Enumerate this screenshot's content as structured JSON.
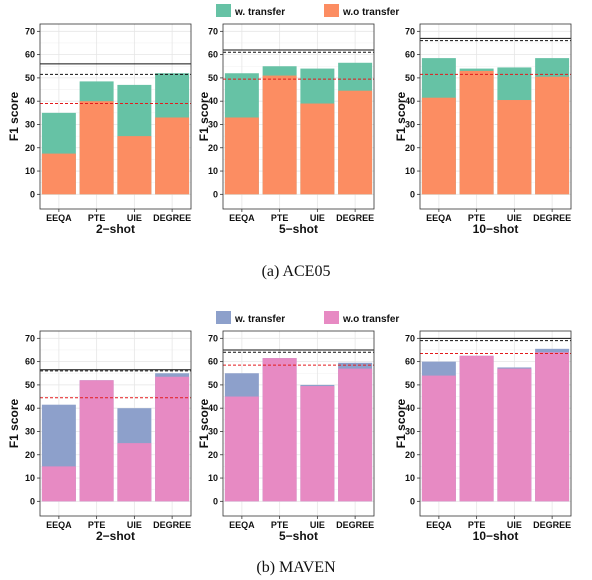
{
  "sections": [
    {
      "legend": {
        "with_label": "w. transfer",
        "without_label": "w.o transfer",
        "with_color": "#66c2a5",
        "without_color": "#fc8d62"
      },
      "caption": "(a)  ACE05",
      "panels": [
        {
          "xlabel": "2−shot"
        },
        {
          "xlabel": "5−shot"
        },
        {
          "xlabel": "10−shot"
        }
      ]
    },
    {
      "legend": {
        "with_label": "w. transfer",
        "without_label": "w.o transfer",
        "with_color": "#8da0cb",
        "without_color": "#e78ac3"
      },
      "caption": "(b)  MAVEN",
      "panels": [
        {
          "xlabel": "2−shot"
        },
        {
          "xlabel": "5−shot"
        },
        {
          "xlabel": "10−shot"
        }
      ]
    }
  ],
  "chart_data": [
    {
      "type": "bar",
      "dataset": "ACE05",
      "xlabel": "2−shot",
      "ylabel": "F1 score",
      "ylim": [
        0,
        70
      ],
      "yticks": [
        0,
        10,
        20,
        30,
        40,
        50,
        60,
        70
      ],
      "categories": [
        "EEQA",
        "PTE",
        "UIE",
        "DEGREE"
      ],
      "series": [
        {
          "name": "w. transfer",
          "values": [
            35,
            48.5,
            47,
            52
          ]
        },
        {
          "name": "w.o transfer",
          "values": [
            17.5,
            40,
            25,
            33
          ]
        }
      ],
      "reference_lines": {
        "solid_black": 56,
        "dashed_black": 51.5,
        "dashed_red": 39
      }
    },
    {
      "type": "bar",
      "dataset": "ACE05",
      "xlabel": "5−shot",
      "ylabel": "F1 score",
      "ylim": [
        0,
        70
      ],
      "yticks": [
        0,
        10,
        20,
        30,
        40,
        50,
        60,
        70
      ],
      "categories": [
        "EEQA",
        "PTE",
        "UIE",
        "DEGREE"
      ],
      "series": [
        {
          "name": "w. transfer",
          "values": [
            52,
            55,
            54,
            56.5
          ]
        },
        {
          "name": "w.o transfer",
          "values": [
            33,
            51,
            39,
            44.5
          ]
        }
      ],
      "reference_lines": {
        "solid_black": 62,
        "dashed_black": 61,
        "dashed_red": 49.5
      }
    },
    {
      "type": "bar",
      "dataset": "ACE05",
      "xlabel": "10−shot",
      "ylabel": "F1 score",
      "ylim": [
        0,
        70
      ],
      "yticks": [
        0,
        10,
        20,
        30,
        40,
        50,
        60,
        70
      ],
      "categories": [
        "EEQA",
        "PTE",
        "UIE",
        "DEGREE"
      ],
      "series": [
        {
          "name": "w. transfer",
          "values": [
            58.5,
            54,
            54.5,
            58.5
          ]
        },
        {
          "name": "w.o transfer",
          "values": [
            41.5,
            53,
            40.5,
            50.5
          ]
        }
      ],
      "reference_lines": {
        "solid_black": 67,
        "dashed_black": 66,
        "dashed_red": 51.5
      }
    },
    {
      "type": "bar",
      "dataset": "MAVEN",
      "xlabel": "2−shot",
      "ylabel": "F1 score",
      "ylim": [
        0,
        70
      ],
      "yticks": [
        0,
        10,
        20,
        30,
        40,
        50,
        60,
        70
      ],
      "categories": [
        "EEQA",
        "PTE",
        "UIE",
        "DEGREE"
      ],
      "series": [
        {
          "name": "w. transfer",
          "values": [
            41.5,
            52,
            40,
            55
          ]
        },
        {
          "name": "w.o transfer",
          "values": [
            15,
            52,
            25,
            53.5
          ]
        }
      ],
      "reference_lines": {
        "solid_black": 56.5,
        "dashed_black": 56,
        "dashed_red": 44.5
      }
    },
    {
      "type": "bar",
      "dataset": "MAVEN",
      "xlabel": "5−shot",
      "ylabel": "F1 score",
      "ylim": [
        0,
        70
      ],
      "yticks": [
        0,
        10,
        20,
        30,
        40,
        50,
        60,
        70
      ],
      "categories": [
        "EEQA",
        "PTE",
        "UIE",
        "DEGREE"
      ],
      "series": [
        {
          "name": "w. transfer",
          "values": [
            55,
            61.5,
            50,
            59.5
          ]
        },
        {
          "name": "w.o transfer",
          "values": [
            45,
            61.5,
            49.5,
            57
          ]
        }
      ],
      "reference_lines": {
        "solid_black": 65,
        "dashed_black": 64,
        "dashed_red": 58.5
      }
    },
    {
      "type": "bar",
      "dataset": "MAVEN",
      "xlabel": "10−shot",
      "ylabel": "F1 score",
      "ylim": [
        0,
        70
      ],
      "yticks": [
        0,
        10,
        20,
        30,
        40,
        50,
        60,
        70
      ],
      "categories": [
        "EEQA",
        "PTE",
        "UIE",
        "DEGREE"
      ],
      "series": [
        {
          "name": "w. transfer",
          "values": [
            60,
            62.5,
            57.5,
            65.5
          ]
        },
        {
          "name": "w.o transfer",
          "values": [
            54,
            62.5,
            57,
            64
          ]
        }
      ],
      "reference_lines": {
        "solid_black": 70,
        "dashed_black": 69,
        "dashed_red": 63.5
      }
    }
  ]
}
